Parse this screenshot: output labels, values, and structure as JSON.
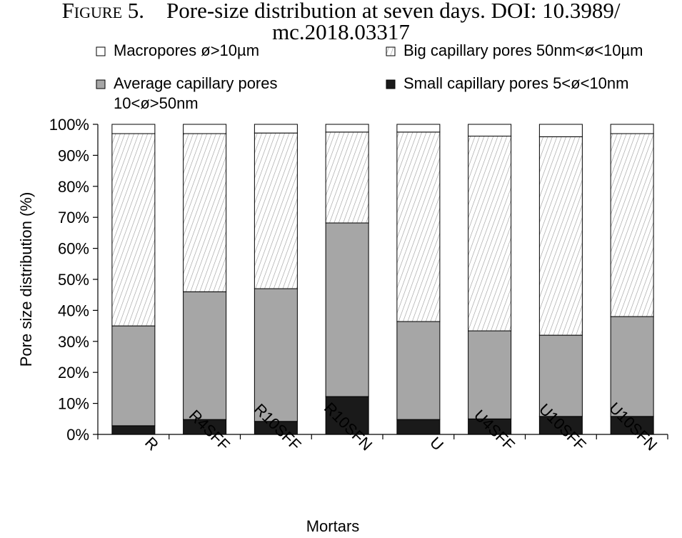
{
  "caption": {
    "figure_label": "Figure 5.",
    "text": "Pore-size distribution at seven days. DOI: 10.3989/",
    "text_line2": "mc.2018.03317"
  },
  "chart_data": {
    "type": "bar",
    "stacked": true,
    "categories": [
      "R",
      "R4SFF",
      "R10SFF",
      "R10SFN",
      "U",
      "U4SFF",
      "U10SFF",
      "U10SFN"
    ],
    "series": [
      {
        "name": "Small capillary pores 5<ø<10nm",
        "color": "#1a1a1a",
        "pattern": "solid",
        "values": [
          2.8,
          4.8,
          4.2,
          12.2,
          4.8,
          5.0,
          5.8,
          5.8
        ]
      },
      {
        "name": "Average capillary pores 10<ø>50nm",
        "color": "#a6a6a6",
        "pattern": "solid",
        "values": [
          32.2,
          41.2,
          42.8,
          56.0,
          31.6,
          28.4,
          26.2,
          32.2
        ]
      },
      {
        "name": "Big capillary pores 50nm<ø<10µm",
        "color": "#ffffff",
        "pattern": "diagonal-hatch",
        "values": [
          62.0,
          51.0,
          50.2,
          29.3,
          61.1,
          62.8,
          64.0,
          59.0
        ]
      },
      {
        "name": "Macropores ø>10µm",
        "color": "#ffffff",
        "pattern": "solid",
        "values": [
          3.0,
          3.0,
          2.8,
          2.5,
          2.5,
          3.8,
          4.0,
          3.0
        ]
      }
    ],
    "legend_order": [
      3,
      2,
      1,
      0
    ],
    "ylim": [
      0,
      100
    ],
    "yticks": [
      "0%",
      "10%",
      "20%",
      "30%",
      "40%",
      "50%",
      "60%",
      "70%",
      "80%",
      "90%",
      "100%"
    ],
    "ylabel": "Pore size distribution (%)",
    "xlabel": "Mortars",
    "legend_position": "top",
    "grid": false
  }
}
